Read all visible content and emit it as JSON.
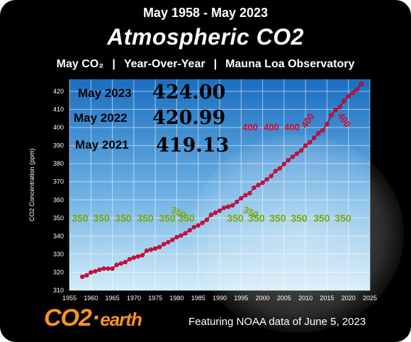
{
  "header": {
    "date_range": "May 1958 - May 2023",
    "title_prefix": "Atmospheric ",
    "title_co2": "CO2",
    "sub_1": "May CO₂",
    "sub_sep": "|",
    "sub_2": "Year-Over-Year",
    "sub_3": "Mauna Loa Observatory"
  },
  "callouts": [
    {
      "label": "May 2023",
      "value": "424.00"
    },
    {
      "label": "May 2022",
      "value": "420.99"
    },
    {
      "label": "May 2021",
      "value": "419.13"
    }
  ],
  "footer": {
    "logo_co2": "CO2",
    "logo_dot": "·",
    "logo_earth": "earth",
    "note": "Featuring NOAA data of June 5, 2023"
  },
  "colors": {
    "background": "#000000",
    "plot_top": "#1a6ec0",
    "plot_bottom": "#d4ecf8",
    "series_line": "#a30030",
    "series_point": "#e8003a",
    "milestone_350": "#7aa800",
    "milestone_400": "#e0002c",
    "logo": "#f7941d"
  },
  "chart_data": {
    "type": "line",
    "title": "",
    "xlabel": "",
    "ylabel": "CO2  Concentration (ppm)",
    "xlim": [
      1955,
      2025
    ],
    "ylim": [
      310,
      425
    ],
    "x_ticks": [
      "1955",
      "1960",
      "1965",
      "1970",
      "1975",
      "1980",
      "1985",
      "1990",
      "1995",
      "2000",
      "2005",
      "2010",
      "2015",
      "2020",
      "2025"
    ],
    "y_ticks": [
      "310",
      "320",
      "330",
      "340",
      "350",
      "360",
      "370",
      "380",
      "390",
      "400",
      "410",
      "420"
    ],
    "grid": true,
    "series": [
      {
        "x": [
          1958,
          1959,
          1960,
          1961,
          1962,
          1963,
          1964,
          1965,
          1966,
          1967,
          1968,
          1969,
          1970,
          1971,
          1972,
          1973,
          1974,
          1975,
          1976,
          1977,
          1978,
          1979,
          1980,
          1981,
          1982,
          1983,
          1984,
          1985,
          1986,
          1987,
          1988,
          1989,
          1990,
          1991,
          1992,
          1993,
          1994,
          1995,
          1996,
          1997,
          1998,
          1999,
          2000,
          2001,
          2002,
          2003,
          2004,
          2005,
          2006,
          2007,
          2008,
          2009,
          2010,
          2011,
          2012,
          2013,
          2014,
          2015,
          2016,
          2017,
          2018,
          2019,
          2020,
          2021,
          2022,
          2023
        ],
        "y": [
          317.5,
          318.3,
          319.9,
          320.5,
          321.4,
          322.0,
          322.0,
          322.0,
          324.0,
          324.8,
          325.6,
          327.2,
          328.1,
          328.7,
          329.4,
          331.9,
          332.5,
          333.1,
          333.9,
          335.5,
          336.6,
          337.9,
          339.4,
          340.3,
          341.5,
          343.2,
          344.9,
          345.9,
          347.3,
          349.0,
          351.7,
          352.9,
          354.0,
          355.6,
          356.2,
          357.0,
          358.9,
          360.9,
          362.6,
          363.7,
          366.7,
          368.2,
          369.5,
          371.3,
          373.2,
          375.9,
          377.4,
          379.8,
          381.9,
          383.8,
          385.6,
          387.3,
          390.0,
          391.8,
          394.3,
          396.8,
          398.5,
          401.9,
          406.9,
          409.6,
          411.3,
          414.7,
          417.3,
          419.13,
          420.99,
          424.0
        ]
      }
    ],
    "annotations": {
      "milestone_350": [
        "350",
        "350",
        "350",
        "350",
        "350",
        "350"
      ],
      "rotated_350": [
        "350",
        "350"
      ],
      "milestone_350_right": [
        "350",
        "350",
        "350",
        "350",
        "350",
        "350"
      ],
      "milestone_400": [
        "400",
        "400",
        "400"
      ],
      "rotated_400": [
        "400",
        "400"
      ]
    }
  }
}
